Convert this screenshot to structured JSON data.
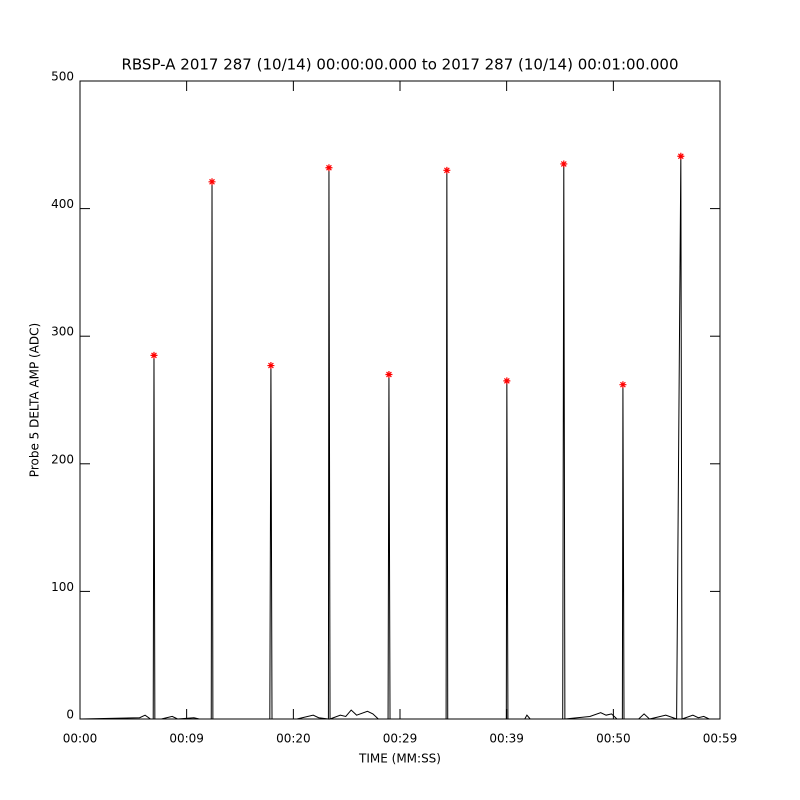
{
  "chart_data": {
    "type": "line",
    "title": "RBSP-A 2017 287 (10/14) 00:00:00.000 to 2017 287 (10/14) 00:01:00.000",
    "x_label": "TIME (MM:SS)",
    "y_label": "Probe 5 DELTA AMP (ADC)",
    "xlim": [
      0,
      59
    ],
    "xticks": [
      {
        "value": 0,
        "label": "00:00"
      },
      {
        "value": 9.83,
        "label": "00:09"
      },
      {
        "value": 19.67,
        "label": "00:20"
      },
      {
        "value": 29.5,
        "label": "00:29"
      },
      {
        "value": 39.33,
        "label": "00:39"
      },
      {
        "value": 49.17,
        "label": "00:50"
      },
      {
        "value": 59,
        "label": "00:59"
      }
    ],
    "ylim": [
      0,
      500
    ],
    "yticks": [
      0,
      100,
      200,
      300,
      400,
      500
    ],
    "series": [
      {
        "color": "#000000",
        "x": [
          0,
          5.5,
          6.0,
          6.5,
          6.75,
          6.82,
          6.9,
          7.5,
          8.5,
          9,
          10.5,
          11,
          12.1,
          12.17,
          12.25,
          14,
          16,
          17.5,
          17.6,
          17.7,
          20,
          21.5,
          22,
          22.9,
          22.95,
          23.05,
          24,
          24.5,
          25,
          25.5,
          26.5,
          27,
          27.5,
          28.4,
          28.48,
          28.58,
          30,
          33.75,
          33.82,
          33.9,
          36,
          39.3,
          39.35,
          39.45,
          41,
          41.2,
          41.5,
          43,
          44.5,
          44.6,
          44.7,
          47,
          48,
          48.5,
          49,
          49.5,
          50,
          50.05,
          50.15,
          51.5,
          52,
          52.5,
          53,
          54,
          55,
          55.39,
          55.5,
          56.5,
          57,
          57.5,
          58,
          59
        ],
        "values": [
          0,
          1,
          3,
          0,
          0,
          285,
          0,
          0,
          2,
          0,
          1,
          0,
          0,
          421,
          0,
          0,
          0,
          0,
          277,
          0,
          0,
          3,
          1,
          0,
          432,
          0,
          3,
          2,
          7,
          3,
          6,
          4,
          0,
          0,
          270,
          0,
          0,
          0,
          430,
          0,
          0,
          0,
          265,
          0,
          0,
          3,
          0,
          0,
          0,
          435,
          0,
          2,
          5,
          3,
          4,
          0,
          0,
          262,
          0,
          0,
          4,
          0,
          1,
          3,
          0,
          441,
          0,
          3,
          1,
          2,
          0,
          0
        ]
      }
    ],
    "markers": {
      "color": "#ff0000",
      "x": [
        6.82,
        12.17,
        17.6,
        22.95,
        28.48,
        33.82,
        39.35,
        44.6,
        50.05,
        55.39
      ],
      "values": [
        285,
        421,
        277,
        432,
        270,
        430,
        265,
        435,
        262,
        441
      ]
    }
  }
}
